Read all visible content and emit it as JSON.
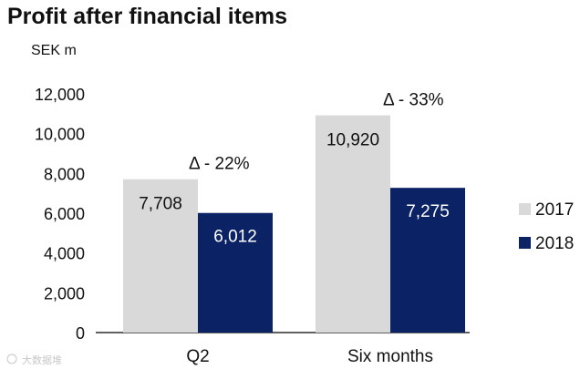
{
  "chart_data": {
    "type": "bar",
    "title": "Profit after financial items",
    "ylabel": "SEK m",
    "xlabel": "",
    "categories": [
      "Q2",
      "Six months"
    ],
    "series": [
      {
        "name": "2017",
        "values": [
          7708,
          10920
        ],
        "labels": [
          "7,708",
          "10,920"
        ],
        "color": "#d9d9d9"
      },
      {
        "name": "2018",
        "values": [
          6012,
          7275
        ],
        "labels": [
          "6,012",
          "7,275"
        ],
        "color": "#0b2265"
      }
    ],
    "ylim": [
      0,
      12000
    ],
    "yticks": [
      0,
      2000,
      4000,
      6000,
      8000,
      10000,
      12000
    ],
    "ytick_labels": [
      "0",
      "2,000",
      "4,000",
      "6,000",
      "8,000",
      "10,000",
      "12,000"
    ],
    "annotations": [
      "Δ - 22%",
      "Δ - 33%"
    ],
    "legend_position": "right",
    "grid": false
  },
  "watermark": "大数据堆"
}
